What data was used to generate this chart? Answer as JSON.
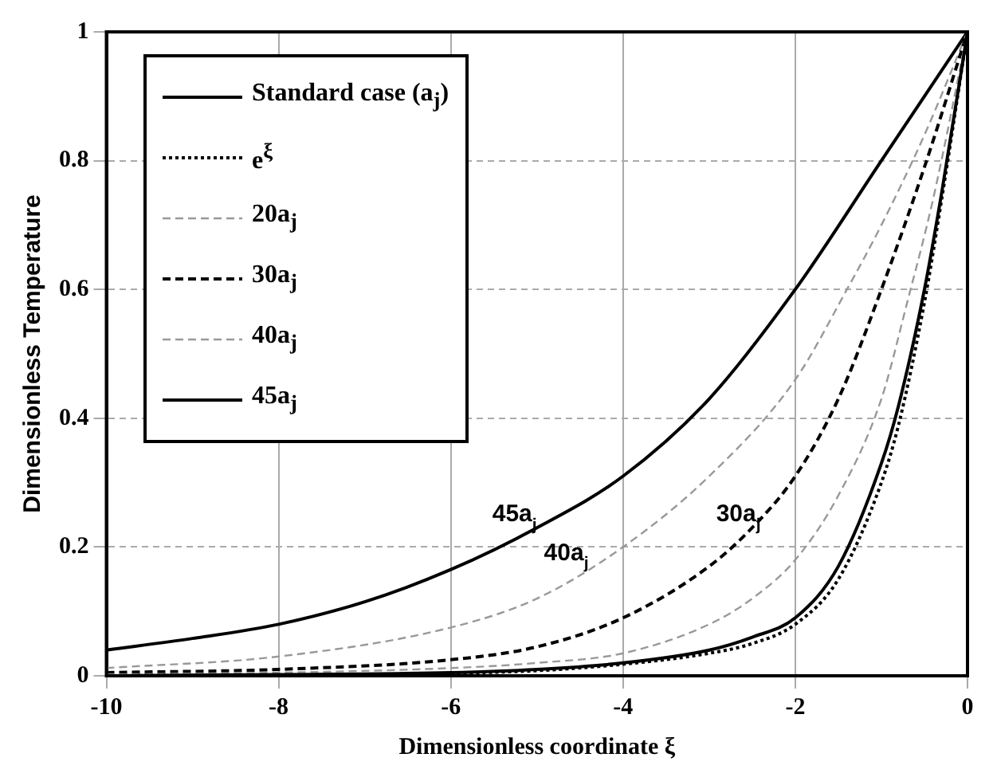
{
  "chart_data": {
    "type": "line",
    "xlabel": "Dimensionless coordinate ξ",
    "ylabel": "Dimensionless Temperature",
    "xlim": [
      -10,
      0
    ],
    "ylim": [
      0,
      1
    ],
    "xticks": [
      -10,
      -8,
      -6,
      -4,
      -2,
      0
    ],
    "yticks": [
      0,
      0.2,
      0.4,
      0.6,
      0.8,
      1
    ],
    "grid": true,
    "legend": "top left",
    "marker": "none",
    "series": [
      {
        "name": "Standard case (a$_{j}$)",
        "color": "#000000",
        "line_style": "solid",
        "x": [
          -10,
          -8,
          -6,
          -5,
          -4,
          -3,
          -2.5,
          -2,
          -1.5,
          -1,
          -0.8,
          -0.5,
          -0.3,
          0
        ],
        "values": [
          0,
          0.002,
          0.005,
          0.01,
          0.02,
          0.04,
          0.06,
          0.09,
          0.17,
          0.33,
          0.42,
          0.6,
          0.75,
          1
        ]
      },
      {
        "name": "e$^{ξ}$",
        "color": "#000000",
        "line_style": "dotted",
        "x": [
          -10,
          -8,
          -6,
          -5,
          -4,
          -3,
          -2.5,
          -2,
          -1.5,
          -1,
          -0.8,
          -0.5,
          -0.3,
          0
        ],
        "values": [
          0,
          0.001,
          0.004,
          0.008,
          0.018,
          0.035,
          0.05,
          0.08,
          0.15,
          0.3,
          0.39,
          0.58,
          0.74,
          1
        ]
      },
      {
        "name": "20a$_{j}$",
        "color": "#999999",
        "line_style": "dashed",
        "x": [
          -10,
          -8,
          -6,
          -5,
          -4,
          -3,
          -2.5,
          -2,
          -1.5,
          -1,
          -0.7,
          -0.4,
          0
        ],
        "values": [
          0.002,
          0.005,
          0.012,
          0.02,
          0.035,
          0.08,
          0.12,
          0.18,
          0.28,
          0.43,
          0.58,
          0.74,
          1
        ]
      },
      {
        "name": "30a$_{j}$",
        "color": "#000000",
        "line_style": "dashed",
        "x": [
          -10,
          -8,
          -6,
          -5,
          -4,
          -3,
          -2.5,
          -2,
          -1.5,
          -1,
          -0.5,
          0
        ],
        "values": [
          0.005,
          0.01,
          0.025,
          0.045,
          0.09,
          0.17,
          0.23,
          0.31,
          0.43,
          0.6,
          0.79,
          1
        ]
      },
      {
        "name": "40a$_{j}$",
        "color": "#999999",
        "line_style": "dashed",
        "x": [
          -10,
          -8,
          -6,
          -5,
          -4,
          -3,
          -2,
          -1.4,
          -1,
          -0.5,
          0
        ],
        "values": [
          0.012,
          0.03,
          0.075,
          0.12,
          0.2,
          0.31,
          0.46,
          0.6,
          0.7,
          0.84,
          1
        ]
      },
      {
        "name": "45a$_{j}$",
        "color": "#000000",
        "line_style": "solid",
        "x": [
          -10,
          -9,
          -8,
          -7,
          -6,
          -5,
          -4,
          -3,
          -2,
          -1,
          0
        ],
        "values": [
          0.04,
          0.058,
          0.08,
          0.115,
          0.165,
          0.23,
          0.31,
          0.43,
          0.6,
          0.8,
          1
        ]
      }
    ],
    "annotations": [
      {
        "text": "45a$_{j}$",
        "x": -5,
        "y": 0.23
      },
      {
        "text": "40a$_{j}$",
        "x": -4.4,
        "y": 0.17
      },
      {
        "text": "30a$_{j}$",
        "x": -2.4,
        "y": 0.23
      }
    ]
  }
}
